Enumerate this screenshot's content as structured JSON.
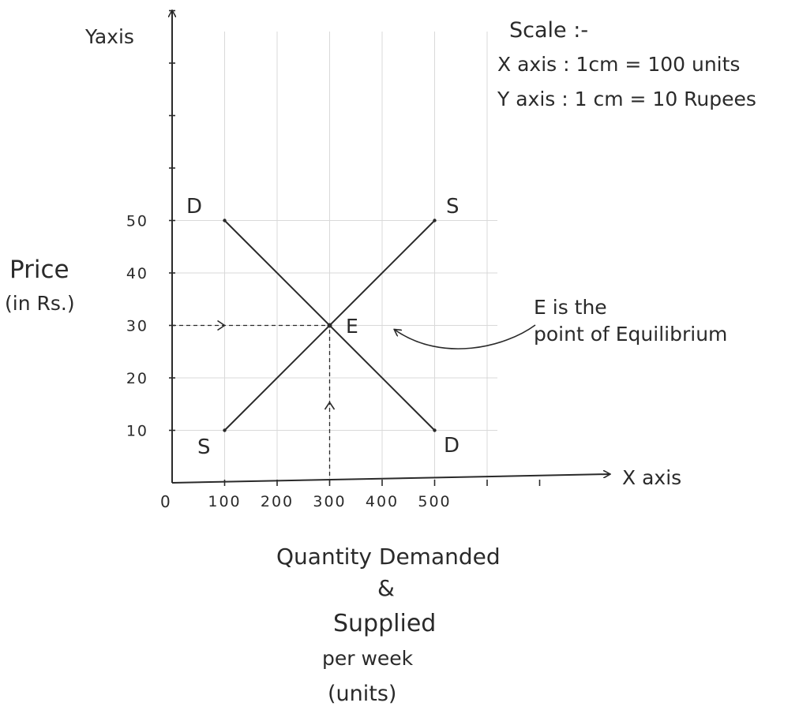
{
  "chart_data": {
    "type": "line",
    "axis_labels": {
      "y_axis": "Yaxis",
      "x_axis": "X axis",
      "origin": "0"
    },
    "xlabel_lines": [
      "Quantity Demanded",
      "&",
      "Supplied",
      "per week",
      "(units)"
    ],
    "ylabel_lines": [
      "Price",
      "(in Rs.)"
    ],
    "x_ticks": [
      100,
      200,
      300,
      400,
      500
    ],
    "y_ticks": [
      10,
      20,
      30,
      40,
      50
    ],
    "xlim": [
      0,
      500
    ],
    "ylim": [
      0,
      50
    ],
    "grid": true,
    "scale_lines": [
      "Scale :-",
      "X axis : 1cm = 100 units",
      "Y axis : 1 cm = 10 Rupees"
    ],
    "series": [
      {
        "points": [
          [
            100,
            50
          ],
          [
            500,
            10
          ]
        ],
        "start_label": "D",
        "end_label": "D"
      },
      {
        "points": [
          [
            100,
            10
          ],
          [
            500,
            50
          ]
        ],
        "start_label": "S",
        "end_label": "S"
      }
    ],
    "equilibrium": {
      "x": 300,
      "y": 30,
      "label": "E",
      "annotation_lines": [
        "E is the",
        "point of Equilibrium"
      ]
    }
  }
}
